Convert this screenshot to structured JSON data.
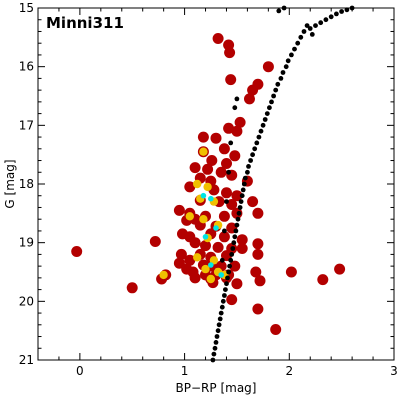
{
  "chart_data": {
    "type": "scatter",
    "title": "Minni311",
    "xlabel": "BP−RP [mag]",
    "ylabel": "G [mag]",
    "xlim": [
      -0.4,
      3.0
    ],
    "ylim": [
      21,
      15
    ],
    "y_inverted": true,
    "grid": false,
    "x_ticks": [
      0,
      1,
      2,
      3
    ],
    "x_tick_labels": [
      "0",
      "1",
      "2",
      "3"
    ],
    "y_ticks": [
      15,
      16,
      17,
      18,
      19,
      20,
      21
    ],
    "y_tick_labels": [
      "15",
      "16",
      "17",
      "18",
      "19",
      "20",
      "21"
    ],
    "series": [
      {
        "marker_color": "#b30000",
        "points": [
          [
            1.32,
            15.52
          ],
          [
            1.42,
            15.63
          ],
          [
            1.43,
            15.76
          ],
          [
            1.44,
            16.22
          ],
          [
            1.8,
            16.0
          ],
          [
            1.7,
            16.3
          ],
          [
            1.65,
            16.4
          ],
          [
            1.62,
            16.55
          ],
          [
            1.53,
            16.95
          ],
          [
            1.5,
            17.1
          ],
          [
            1.42,
            17.05
          ],
          [
            1.18,
            17.2
          ],
          [
            1.3,
            17.22
          ],
          [
            1.38,
            17.4
          ],
          [
            1.18,
            17.45
          ],
          [
            1.48,
            17.52
          ],
          [
            1.26,
            17.6
          ],
          [
            1.4,
            17.65
          ],
          [
            1.1,
            17.72
          ],
          [
            1.22,
            17.75
          ],
          [
            1.35,
            17.8
          ],
          [
            1.45,
            17.85
          ],
          [
            1.6,
            17.95
          ],
          [
            1.15,
            17.9
          ],
          [
            1.25,
            17.95
          ],
          [
            1.05,
            18.05
          ],
          [
            1.28,
            18.1
          ],
          [
            1.4,
            18.15
          ],
          [
            1.5,
            18.2
          ],
          [
            1.65,
            18.3
          ],
          [
            1.15,
            18.28
          ],
          [
            1.33,
            18.3
          ],
          [
            1.45,
            18.35
          ],
          [
            0.95,
            18.45
          ],
          [
            1.05,
            18.5
          ],
          [
            1.1,
            18.6
          ],
          [
            1.2,
            18.55
          ],
          [
            1.38,
            18.55
          ],
          [
            1.5,
            18.5
          ],
          [
            1.7,
            18.5
          ],
          [
            1.02,
            18.62
          ],
          [
            1.15,
            18.7
          ],
          [
            1.3,
            18.72
          ],
          [
            1.45,
            18.75
          ],
          [
            0.98,
            18.85
          ],
          [
            1.05,
            18.9
          ],
          [
            1.25,
            18.85
          ],
          [
            1.38,
            18.9
          ],
          [
            1.55,
            18.95
          ],
          [
            0.72,
            18.98
          ],
          [
            1.1,
            19.0
          ],
          [
            1.2,
            19.05
          ],
          [
            1.32,
            19.08
          ],
          [
            1.45,
            19.1
          ],
          [
            1.55,
            19.1
          ],
          [
            1.7,
            19.02
          ],
          [
            0.97,
            19.2
          ],
          [
            1.15,
            19.2
          ],
          [
            1.25,
            19.25
          ],
          [
            1.4,
            19.22
          ],
          [
            1.7,
            19.2
          ],
          [
            1.05,
            19.3
          ],
          [
            1.18,
            19.38
          ],
          [
            0.95,
            19.35
          ],
          [
            1.25,
            19.4
          ],
          [
            1.35,
            19.4
          ],
          [
            1.48,
            19.4
          ],
          [
            1.02,
            19.45
          ],
          [
            1.08,
            19.5
          ],
          [
            1.2,
            19.55
          ],
          [
            1.3,
            19.55
          ],
          [
            1.42,
            19.55
          ],
          [
            1.68,
            19.5
          ],
          [
            0.82,
            19.55
          ],
          [
            0.78,
            19.62
          ],
          [
            1.1,
            19.6
          ],
          [
            1.25,
            19.62
          ],
          [
            1.4,
            19.6
          ],
          [
            1.72,
            19.65
          ],
          [
            1.27,
            19.68
          ],
          [
            1.5,
            19.7
          ],
          [
            -0.03,
            19.15
          ],
          [
            2.02,
            19.5
          ],
          [
            2.48,
            19.45
          ],
          [
            2.32,
            19.63
          ],
          [
            0.5,
            19.77
          ],
          [
            1.45,
            19.97
          ],
          [
            1.7,
            20.13
          ],
          [
            1.87,
            20.48
          ]
        ]
      },
      {
        "marker_color": "#f0c000",
        "points": [
          [
            1.18,
            17.45
          ],
          [
            1.12,
            18.0
          ],
          [
            1.22,
            18.05
          ],
          [
            1.15,
            18.25
          ],
          [
            1.28,
            18.3
          ],
          [
            1.05,
            18.55
          ],
          [
            1.18,
            18.6
          ],
          [
            1.32,
            18.7
          ],
          [
            1.22,
            18.92
          ],
          [
            1.12,
            19.25
          ],
          [
            1.28,
            19.3
          ],
          [
            1.2,
            19.45
          ],
          [
            1.32,
            19.5
          ],
          [
            1.38,
            19.55
          ],
          [
            0.8,
            19.55
          ],
          [
            1.25,
            19.62
          ]
        ]
      },
      {
        "marker_color": "#00e5e5",
        "points": [
          [
            1.18,
            18.2
          ],
          [
            1.25,
            18.25
          ],
          [
            1.3,
            18.75
          ],
          [
            1.2,
            18.9
          ],
          [
            1.25,
            19.38
          ],
          [
            1.35,
            19.55
          ]
        ]
      },
      {
        "marker_color": "#000000",
        "points": [
          [
            1.27,
            21.0
          ],
          [
            1.28,
            20.9
          ],
          [
            1.29,
            20.8
          ],
          [
            1.3,
            20.7
          ],
          [
            1.31,
            20.6
          ],
          [
            1.32,
            20.5
          ],
          [
            1.33,
            20.4
          ],
          [
            1.34,
            20.3
          ],
          [
            1.35,
            20.2
          ],
          [
            1.36,
            20.1
          ],
          [
            1.37,
            20.0
          ],
          [
            1.38,
            19.9
          ],
          [
            1.39,
            19.8
          ],
          [
            1.4,
            19.7
          ],
          [
            1.41,
            19.6
          ],
          [
            1.42,
            19.5
          ],
          [
            1.43,
            19.4
          ],
          [
            1.44,
            19.3
          ],
          [
            1.45,
            19.2
          ],
          [
            1.46,
            19.1
          ],
          [
            1.47,
            19.0
          ],
          [
            1.48,
            18.9
          ],
          [
            1.49,
            18.8
          ],
          [
            1.5,
            18.7
          ],
          [
            1.51,
            18.6
          ],
          [
            1.52,
            18.5
          ],
          [
            1.53,
            18.4
          ],
          [
            1.54,
            18.3
          ],
          [
            1.55,
            18.2
          ],
          [
            1.56,
            18.1
          ],
          [
            1.57,
            18.0
          ],
          [
            1.58,
            17.9
          ],
          [
            1.6,
            17.8
          ],
          [
            1.61,
            17.7
          ],
          [
            1.63,
            17.6
          ],
          [
            1.65,
            17.5
          ],
          [
            1.67,
            17.4
          ],
          [
            1.69,
            17.3
          ],
          [
            1.71,
            17.2
          ],
          [
            1.73,
            17.1
          ],
          [
            1.75,
            17.0
          ],
          [
            1.77,
            16.9
          ],
          [
            1.79,
            16.8
          ],
          [
            1.81,
            16.7
          ],
          [
            1.83,
            16.6
          ],
          [
            1.85,
            16.5
          ],
          [
            1.87,
            16.4
          ],
          [
            1.89,
            16.3
          ],
          [
            1.92,
            16.2
          ],
          [
            1.94,
            16.1
          ],
          [
            1.97,
            16.0
          ],
          [
            1.99,
            15.9
          ],
          [
            2.02,
            15.8
          ],
          [
            2.05,
            15.7
          ],
          [
            2.08,
            15.6
          ],
          [
            2.11,
            15.5
          ],
          [
            2.14,
            15.4
          ],
          [
            2.17,
            15.3
          ],
          [
            2.2,
            15.35
          ],
          [
            2.22,
            15.45
          ],
          [
            2.25,
            15.3
          ],
          [
            2.3,
            15.25
          ],
          [
            2.35,
            15.2
          ],
          [
            2.4,
            15.15
          ],
          [
            2.45,
            15.1
          ],
          [
            2.5,
            15.06
          ],
          [
            2.55,
            15.03
          ],
          [
            2.6,
            15.0
          ],
          [
            1.95,
            15.0
          ],
          [
            1.9,
            15.05
          ],
          [
            1.5,
            16.55
          ],
          [
            1.48,
            16.7
          ],
          [
            1.44,
            17.3
          ],
          [
            1.42,
            17.8
          ],
          [
            1.4,
            18.3
          ],
          [
            1.38,
            18.8
          ],
          [
            1.36,
            19.3
          ]
        ]
      }
    ]
  }
}
